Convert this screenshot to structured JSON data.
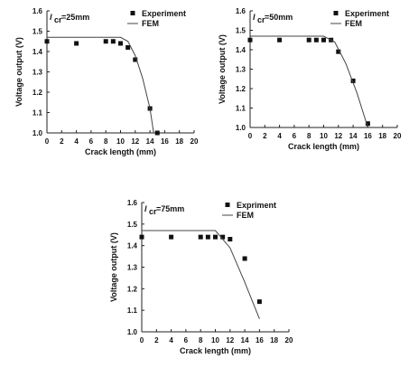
{
  "chart_data": [
    {
      "type": "scatter",
      "annotation_var": "l",
      "annotation_sub": "cr",
      "annotation_val": "=25mm",
      "xlabel": "Crack length (mm)",
      "ylabel": "Voltage output (V)",
      "xlim": [
        0,
        20
      ],
      "ylim": [
        1.0,
        1.6
      ],
      "xticks": [
        "0",
        "2",
        "4",
        "6",
        "8",
        "10",
        "12",
        "14",
        "16",
        "18",
        "20"
      ],
      "yticks": [
        "1.0",
        "1.1",
        "1.2",
        "1.3",
        "1.4",
        "1.5",
        "1.6"
      ],
      "legend_placement": "top-right",
      "grid": false,
      "series": [
        {
          "name": "Experiment",
          "kind": "points",
          "x": [
            0,
            4,
            8,
            9,
            10,
            11,
            12,
            14,
            15
          ],
          "y": [
            1.45,
            1.44,
            1.45,
            1.45,
            1.44,
            1.42,
            1.36,
            1.12,
            1.0
          ]
        },
        {
          "name": "FEM",
          "kind": "line",
          "x": [
            0,
            10,
            11,
            12,
            13,
            14,
            14.5
          ],
          "y": [
            1.47,
            1.47,
            1.45,
            1.38,
            1.27,
            1.12,
            1.0
          ]
        }
      ]
    },
    {
      "type": "scatter",
      "annotation_var": "l",
      "annotation_sub": "cr",
      "annotation_val": "=50mm",
      "xlabel": "Crack length (mm)",
      "ylabel": "Voltage output (V)",
      "xlim": [
        0,
        20
      ],
      "ylim": [
        1.0,
        1.6
      ],
      "xticks": [
        "0",
        "2",
        "4",
        "6",
        "8",
        "10",
        "12",
        "14",
        "16",
        "18",
        "20"
      ],
      "yticks": [
        "1.0",
        "1.1",
        "1.2",
        "1.3",
        "1.4",
        "1.5",
        "1.6"
      ],
      "legend_placement": "top-right",
      "grid": false,
      "series": [
        {
          "name": "Experiment",
          "kind": "points",
          "x": [
            0,
            4,
            8,
            9,
            10,
            11,
            12,
            14,
            16
          ],
          "y": [
            1.45,
            1.45,
            1.45,
            1.45,
            1.45,
            1.45,
            1.39,
            1.24,
            1.02
          ]
        },
        {
          "name": "FEM",
          "kind": "line",
          "x": [
            0,
            10,
            11.5,
            13,
            14.5,
            16
          ],
          "y": [
            1.47,
            1.47,
            1.44,
            1.33,
            1.18,
            1.0
          ]
        }
      ]
    },
    {
      "type": "scatter",
      "annotation_var": "l",
      "annotation_sub": "cr",
      "annotation_val": "=75mm",
      "xlabel": "Crack length (mm)",
      "ylabel": "Voltage output (V)",
      "xlim": [
        0,
        20
      ],
      "ylim": [
        1.0,
        1.6
      ],
      "xticks": [
        "0",
        "2",
        "4",
        "6",
        "8",
        "10",
        "12",
        "14",
        "16",
        "18",
        "20"
      ],
      "yticks": [
        "1.0",
        "1.1",
        "1.2",
        "1.3",
        "1.4",
        "1.5",
        "1.6"
      ],
      "legend_placement": "top-right",
      "grid": false,
      "series": [
        {
          "name": "Expriment",
          "kind": "points",
          "x": [
            0,
            4,
            8,
            9,
            10,
            11,
            12,
            14,
            16
          ],
          "y": [
            1.44,
            1.44,
            1.44,
            1.44,
            1.44,
            1.44,
            1.43,
            1.34,
            1.14
          ]
        },
        {
          "name": "FEM",
          "kind": "line",
          "x": [
            0,
            10,
            12,
            14,
            16
          ],
          "y": [
            1.47,
            1.47,
            1.39,
            1.23,
            1.06
          ]
        }
      ]
    }
  ]
}
